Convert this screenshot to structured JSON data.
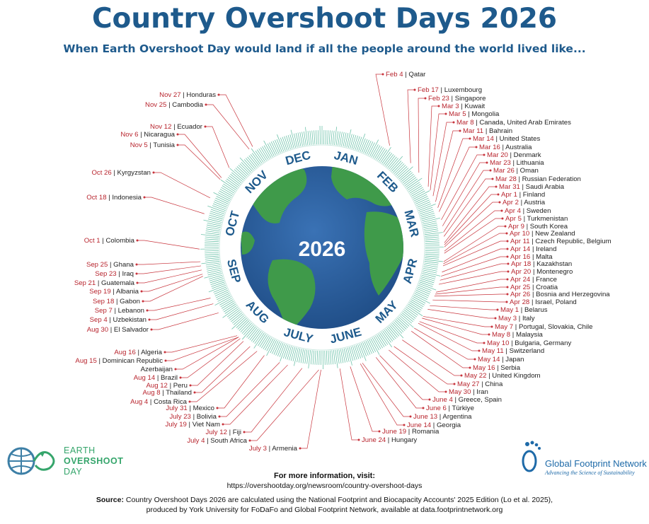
{
  "title": "Country Overshoot Days 2026",
  "subtitle": "When Earth Overshoot Day would land if all the people around the world lived like...",
  "center_year": "2026",
  "months": [
    "JAN",
    "FEB",
    "MAR",
    "APR",
    "MAY",
    "JUNE",
    "JULY",
    "AUG",
    "SEP",
    "OCT",
    "NOV",
    "DEC"
  ],
  "colors": {
    "title": "#1e5a8c",
    "date": "#b8252e",
    "ring": "#3aa88e",
    "globe_ocean": "#2a5e9c",
    "globe_land": "#3f9a4a"
  },
  "right_labels": [
    {
      "date": "Feb 4",
      "country": "Qatar"
    },
    {
      "date": "Feb 17",
      "country": "Luxembourg"
    },
    {
      "date": "Feb 23",
      "country": "Singapore"
    },
    {
      "date": "Mar 3",
      "country": "Kuwait"
    },
    {
      "date": "Mar 5",
      "country": "Mongolia"
    },
    {
      "date": "Mar 8",
      "country": "Canada, United Arab Emirates"
    },
    {
      "date": "Mar 11",
      "country": "Bahrain"
    },
    {
      "date": "Mar 14",
      "country": "United States"
    },
    {
      "date": "Mar 16",
      "country": "Australia"
    },
    {
      "date": "Mar 20",
      "country": "Denmark"
    },
    {
      "date": "Mar 23",
      "country": "Lithuania"
    },
    {
      "date": "Mar 26",
      "country": "Oman"
    },
    {
      "date": "Mar 28",
      "country": "Russian Federation"
    },
    {
      "date": "Mar 31",
      "country": "Saudi Arabia"
    },
    {
      "date": "Apr 1",
      "country": "Finland"
    },
    {
      "date": "Apr 2",
      "country": "Austria"
    },
    {
      "date": "Apr 4",
      "country": "Sweden"
    },
    {
      "date": "Apr 5",
      "country": "Turkmenistan"
    },
    {
      "date": "Apr 9",
      "country": "South Korea"
    },
    {
      "date": "Apr 10",
      "country": "New Zealand"
    },
    {
      "date": "Apr 11",
      "country": "Czech Republic, Belgium"
    },
    {
      "date": "Apr 14",
      "country": "Ireland"
    },
    {
      "date": "Apr 16",
      "country": "Malta"
    },
    {
      "date": "Apr 18",
      "country": "Kazakhstan"
    },
    {
      "date": "Apr 20",
      "country": "Montenegro"
    },
    {
      "date": "Apr 24",
      "country": "France"
    },
    {
      "date": "Apr 25",
      "country": "Croatia"
    },
    {
      "date": "Apr 26",
      "country": "Bosnia and Herzegovina"
    },
    {
      "date": "Apr 28",
      "country": "Israel, Poland"
    },
    {
      "date": "May 1",
      "country": "Belarus"
    },
    {
      "date": "May 3",
      "country": "Italy"
    },
    {
      "date": "May 7",
      "country": "Portugal, Slovakia, Chile"
    },
    {
      "date": "May 8",
      "country": "Malaysia"
    },
    {
      "date": "May 10",
      "country": "Bulgaria, Germany"
    },
    {
      "date": "May 11",
      "country": "Switzerland"
    },
    {
      "date": "May 14",
      "country": "Japan"
    },
    {
      "date": "May 16",
      "country": "Serbia"
    },
    {
      "date": "May 22",
      "country": "United Kingdom"
    },
    {
      "date": "May 27",
      "country": "China"
    },
    {
      "date": "May 30",
      "country": "Iran"
    },
    {
      "date": "June 4",
      "country": "Greece, Spain"
    },
    {
      "date": "June 6",
      "country": "Türkiye"
    },
    {
      "date": "June 13",
      "country": "Argentina"
    },
    {
      "date": "June 14",
      "country": "Georgia"
    },
    {
      "date": "June 19",
      "country": "Romania"
    },
    {
      "date": "June 24",
      "country": "Hungary"
    }
  ],
  "left_labels": [
    {
      "date": "Nov 27",
      "country": "Honduras"
    },
    {
      "date": "Nov 25",
      "country": "Cambodia"
    },
    {
      "date": "Nov 12",
      "country": "Ecuador"
    },
    {
      "date": "Nov 6",
      "country": "Nicaragua"
    },
    {
      "date": "Nov 5",
      "country": "Tunisia"
    },
    {
      "date": "Oct 26",
      "country": "Kyrgyzstan"
    },
    {
      "date": "Oct 18",
      "country": "Indonesia"
    },
    {
      "date": "Oct 1",
      "country": "Colombia"
    },
    {
      "date": "Sep 25",
      "country": "Ghana"
    },
    {
      "date": "Sep 23",
      "country": "Iraq"
    },
    {
      "date": "Sep 21",
      "country": "Guatemala"
    },
    {
      "date": "Sep 19",
      "country": "Albania"
    },
    {
      "date": "Sep 18",
      "country": "Gabon"
    },
    {
      "date": "Sep 7",
      "country": "Lebanon"
    },
    {
      "date": "Sep 4",
      "country": "Uzbekistan"
    },
    {
      "date": "Aug 30",
      "country": "El Salvador"
    },
    {
      "date": "Aug 16",
      "country": "Algeria"
    },
    {
      "date": "Aug 15",
      "country": "Dominican Republic"
    },
    {
      "date": "",
      "country": "Azerbaijan"
    },
    {
      "date": "Aug 14",
      "country": "Brazil"
    },
    {
      "date": "Aug 12",
      "country": "Peru"
    },
    {
      "date": "Aug 8",
      "country": "Thailand"
    },
    {
      "date": "Aug 4",
      "country": "Costa Rica"
    },
    {
      "date": "July 31",
      "country": "Mexico"
    },
    {
      "date": "July 23",
      "country": "Bolivia"
    },
    {
      "date": "July 19",
      "country": "Viet Nam"
    },
    {
      "date": "July 12",
      "country": "Fiji"
    },
    {
      "date": "July 4",
      "country": "South Africa"
    },
    {
      "date": "July 3",
      "country": "Armenia"
    }
  ],
  "footer": {
    "info_heading": "For more information, visit:",
    "info_url": "https://overshootday.org/newsroom/country-overshoot-days",
    "source_label": "Source:",
    "source_line1": " Country Overshoot Days 2026 are calculated using the National Footprint and Biocapacity Accounts' 2025 Edition (Lo et al. 2025),",
    "source_line2": "produced by York University for FoDaFo and Global Footprint Network, available at data.footprintnetwork.org"
  },
  "logos": {
    "eod_lines": [
      "EARTH",
      "OVERSHOOT",
      "DAY"
    ],
    "gfn_name": "Global Footprint Network",
    "gfn_tagline": "Advancing the Science of Sustainability"
  }
}
